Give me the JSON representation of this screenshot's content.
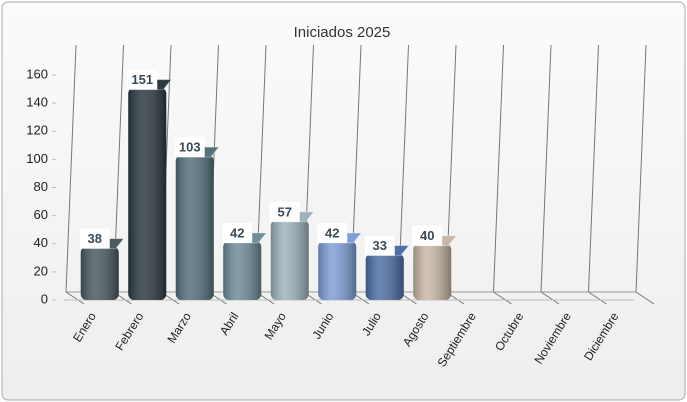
{
  "chart_data": {
    "type": "bar3d",
    "title": "Iniciados 2025",
    "categories": [
      "Enero",
      "Febrero",
      "Marzo",
      "Abril",
      "Mayo",
      "Junio",
      "Julio",
      "Agosto",
      "Septiembre",
      "Octubre",
      "Noviembre",
      "Diciembre"
    ],
    "values": [
      38,
      151,
      103,
      42,
      57,
      42,
      33,
      40,
      null,
      null,
      null,
      null
    ],
    "colors": [
      "#4a5a60",
      "#2c3a42",
      "#56707c",
      "#6f8c99",
      "#9fb3bd",
      "#7f9fd8",
      "#4e6fa6",
      "#c9b8a8",
      null,
      null,
      null,
      null
    ],
    "ylim": [
      0,
      160
    ],
    "yticks": [
      0,
      20,
      40,
      60,
      80,
      100,
      120,
      140,
      160
    ]
  }
}
